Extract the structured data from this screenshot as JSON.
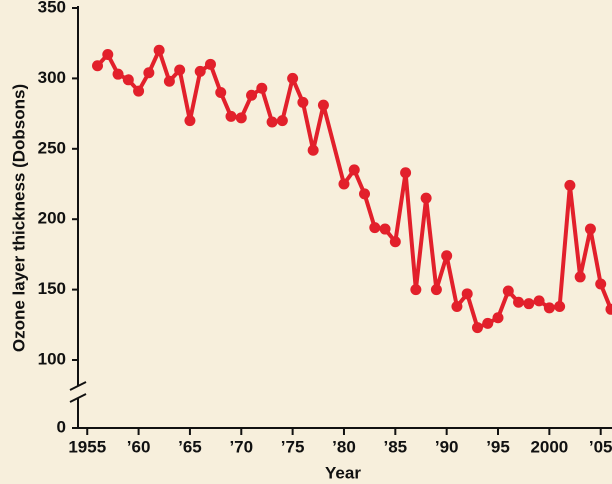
{
  "chart_data": {
    "type": "line",
    "x_label": "Year",
    "y_label": "Ozone layer thickness (Dobsons)",
    "x": [
      1956,
      1957,
      1958,
      1959,
      1960,
      1961,
      1962,
      1963,
      1964,
      1965,
      1966,
      1967,
      1968,
      1969,
      1970,
      1971,
      1972,
      1973,
      1974,
      1975,
      1976,
      1977,
      1978,
      1980,
      1981,
      1982,
      1983,
      1984,
      1985,
      1986,
      1987,
      1988,
      1989,
      1990,
      1991,
      1992,
      1993,
      1994,
      1995,
      1996,
      1997,
      1998,
      1999,
      2000,
      2001,
      2002,
      2003,
      2004,
      2005,
      2006
    ],
    "series": [
      {
        "color": "#e2202b",
        "values": [
          309,
          317,
          303,
          299,
          291,
          304,
          320,
          298,
          306,
          270,
          305,
          310,
          290,
          273,
          272,
          288,
          293,
          269,
          270,
          300,
          283,
          249,
          281,
          225,
          235,
          218,
          194,
          193,
          184,
          233,
          150,
          215,
          150,
          174,
          138,
          147,
          123,
          126,
          130,
          149,
          141,
          140,
          142,
          137,
          138,
          224,
          159,
          193,
          154,
          136
        ]
      }
    ],
    "xlim": [
      1954.1,
      2006.1
    ],
    "xticks": [
      {
        "value": 1955,
        "label": "1955"
      },
      {
        "value": 1960,
        "label": "’60"
      },
      {
        "value": 1965,
        "label": "’65"
      },
      {
        "value": 1970,
        "label": "’70"
      },
      {
        "value": 1975,
        "label": "’75"
      },
      {
        "value": 1980,
        "label": "’80"
      },
      {
        "value": 1985,
        "label": "’85"
      },
      {
        "value": 1990,
        "label": "’90"
      },
      {
        "value": 1995,
        "label": "’95"
      },
      {
        "value": 2000,
        "label": "2000"
      },
      {
        "value": 2005,
        "label": "’05"
      }
    ],
    "ylim": [
      100,
      350
    ],
    "yticks": [
      0,
      100,
      150,
      200,
      250,
      300,
      350
    ],
    "axis_break": true
  }
}
